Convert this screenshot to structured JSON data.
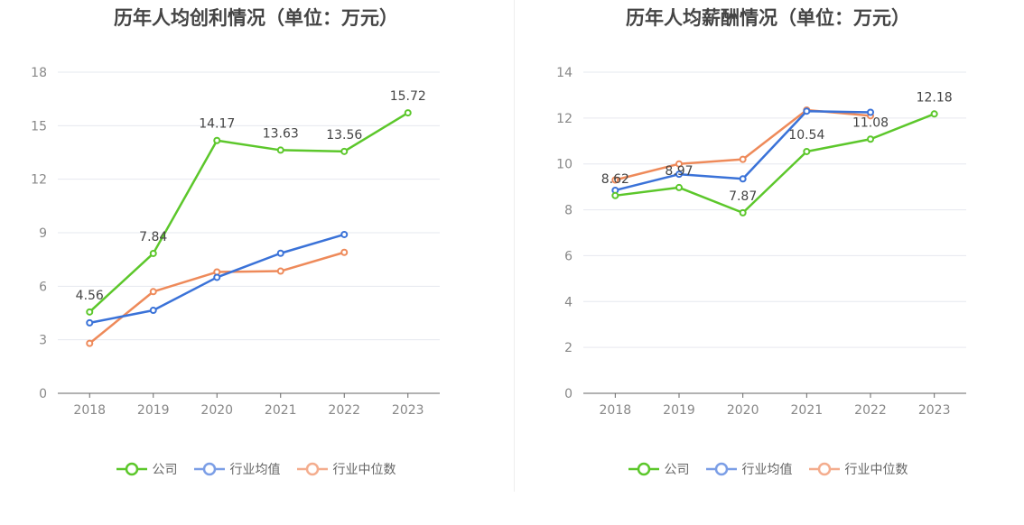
{
  "chart_data": [
    {
      "type": "line",
      "title": "历年人均创利情况（单位：万元）",
      "categories": [
        "2018",
        "2019",
        "2020",
        "2021",
        "2022",
        "2023"
      ],
      "ylim": [
        0,
        18
      ],
      "yticks": [
        0,
        3,
        6,
        9,
        12,
        15,
        18
      ],
      "grid": true,
      "legend": "bottom",
      "series": [
        {
          "name": "公司",
          "color": "#5cc72b",
          "values": [
            4.56,
            7.84,
            14.17,
            13.63,
            13.56,
            15.72
          ],
          "labels": [
            "4.56",
            "7.84",
            "14.17",
            "13.63",
            "13.56",
            "15.72"
          ]
        },
        {
          "name": "行业均值",
          "color": "#3a72d8",
          "values": [
            3.95,
            4.65,
            6.5,
            7.85,
            8.9,
            null
          ],
          "labels": []
        },
        {
          "name": "行业中位数",
          "color": "#ee8a5a",
          "values": [
            2.8,
            5.7,
            6.8,
            6.85,
            7.9,
            null
          ],
          "labels": []
        }
      ]
    },
    {
      "type": "line",
      "title": "历年人均薪酬情况（单位：万元）",
      "categories": [
        "2018",
        "2019",
        "2020",
        "2021",
        "2022",
        "2023"
      ],
      "ylim": [
        0,
        14
      ],
      "yticks": [
        0,
        2,
        4,
        6,
        8,
        10,
        12,
        14
      ],
      "grid": true,
      "legend": "bottom",
      "series": [
        {
          "name": "公司",
          "color": "#5cc72b",
          "values": [
            8.62,
            8.97,
            7.87,
            10.54,
            11.08,
            12.18
          ],
          "labels": [
            "8.62",
            "8.97",
            "7.87",
            "10.54",
            "11.08",
            "12.18"
          ]
        },
        {
          "name": "行业均值",
          "color": "#3a72d8",
          "values": [
            8.85,
            9.55,
            9.35,
            12.3,
            12.25,
            null
          ],
          "labels": []
        },
        {
          "name": "行业中位数",
          "color": "#ee8a5a",
          "values": [
            9.3,
            10.0,
            10.2,
            12.35,
            12.1,
            null
          ],
          "labels": []
        }
      ]
    }
  ],
  "legend_colors": {
    "公司": "#5cc72b",
    "行业均值": "#7b9ee6",
    "行业中位数": "#f4ad8e"
  }
}
